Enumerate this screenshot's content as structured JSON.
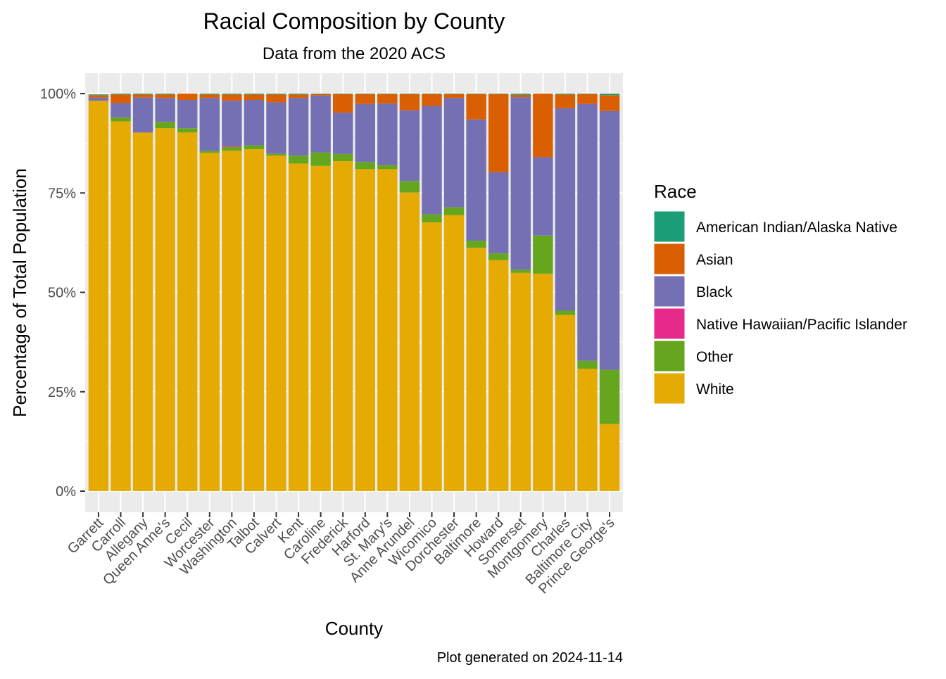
{
  "chart_data": {
    "type": "bar",
    "stacked": true,
    "title": "Racial Composition by County",
    "subtitle": "Data from the 2020 ACS",
    "xlabel": "County",
    "ylabel": "Percentage of Total Population",
    "caption": "Plot generated on 2024-11-14",
    "ylim": [
      0,
      1
    ],
    "y_ticks": [
      "0%",
      "25%",
      "50%",
      "75%",
      "100%"
    ],
    "grid": true,
    "legend": {
      "title": "Race",
      "position": "right"
    },
    "categories": [
      "Garrett",
      "Carroll",
      "Allegany",
      "Queen Anne's",
      "Cecil",
      "Worcester",
      "Washington",
      "Talbot",
      "Calvert",
      "Kent",
      "Caroline",
      "Frederick",
      "Harford",
      "St. Mary's",
      "Anne Arundel",
      "Wicomico",
      "Dorchester",
      "Baltimore",
      "Howard",
      "Somerset",
      "Montgomery",
      "Charles",
      "Baltimore City",
      "Prince George's"
    ],
    "series": [
      {
        "name": "White",
        "color": "#E6AB02",
        "values": [
          0.982,
          0.93,
          0.902,
          0.913,
          0.902,
          0.851,
          0.856,
          0.86,
          0.844,
          0.824,
          0.818,
          0.83,
          0.81,
          0.81,
          0.751,
          0.676,
          0.694,
          0.612,
          0.581,
          0.549,
          0.547,
          0.443,
          0.308,
          0.169
        ]
      },
      {
        "name": "Other",
        "color": "#66A61E",
        "values": [
          0.0,
          0.01,
          0.0,
          0.016,
          0.011,
          0.005,
          0.01,
          0.01,
          0.005,
          0.02,
          0.034,
          0.018,
          0.018,
          0.01,
          0.029,
          0.02,
          0.02,
          0.018,
          0.017,
          0.008,
          0.096,
          0.011,
          0.02,
          0.136
        ]
      },
      {
        "name": "Native Hawaiian/Pacific Islander",
        "color": "#E7298A",
        "values": [
          0.0,
          0.0,
          0.0,
          0.0,
          0.0,
          0.0,
          0.002,
          0.0,
          0.0,
          0.0,
          0.0,
          0.0,
          0.0,
          0.0,
          0.0,
          0.0,
          0.0,
          0.0,
          0.0,
          0.0,
          0.0,
          0.0,
          0.0,
          0.0
        ]
      },
      {
        "name": "Black",
        "color": "#7570B3",
        "values": [
          0.008,
          0.036,
          0.088,
          0.06,
          0.071,
          0.133,
          0.114,
          0.114,
          0.129,
          0.145,
          0.143,
          0.104,
          0.146,
          0.155,
          0.178,
          0.273,
          0.275,
          0.305,
          0.204,
          0.434,
          0.197,
          0.509,
          0.646,
          0.651
        ]
      },
      {
        "name": "Asian",
        "color": "#D95F02",
        "values": [
          0.006,
          0.022,
          0.008,
          0.009,
          0.016,
          0.009,
          0.016,
          0.014,
          0.02,
          0.009,
          0.004,
          0.047,
          0.025,
          0.024,
          0.041,
          0.03,
          0.01,
          0.064,
          0.197,
          0.006,
          0.16,
          0.035,
          0.025,
          0.04
        ]
      },
      {
        "name": "American Indian/Alaska Native",
        "color": "#1B9E77",
        "values": [
          0.002,
          0.002,
          0.002,
          0.002,
          0.0,
          0.002,
          0.002,
          0.002,
          0.002,
          0.002,
          0.001,
          0.001,
          0.001,
          0.001,
          0.001,
          0.001,
          0.001,
          0.001,
          0.001,
          0.003,
          0.0,
          0.002,
          0.001,
          0.004
        ]
      }
    ],
    "legend_order": [
      "American Indian/Alaska Native",
      "Asian",
      "Black",
      "Native Hawaiian/Pacific Islander",
      "Other",
      "White"
    ]
  }
}
